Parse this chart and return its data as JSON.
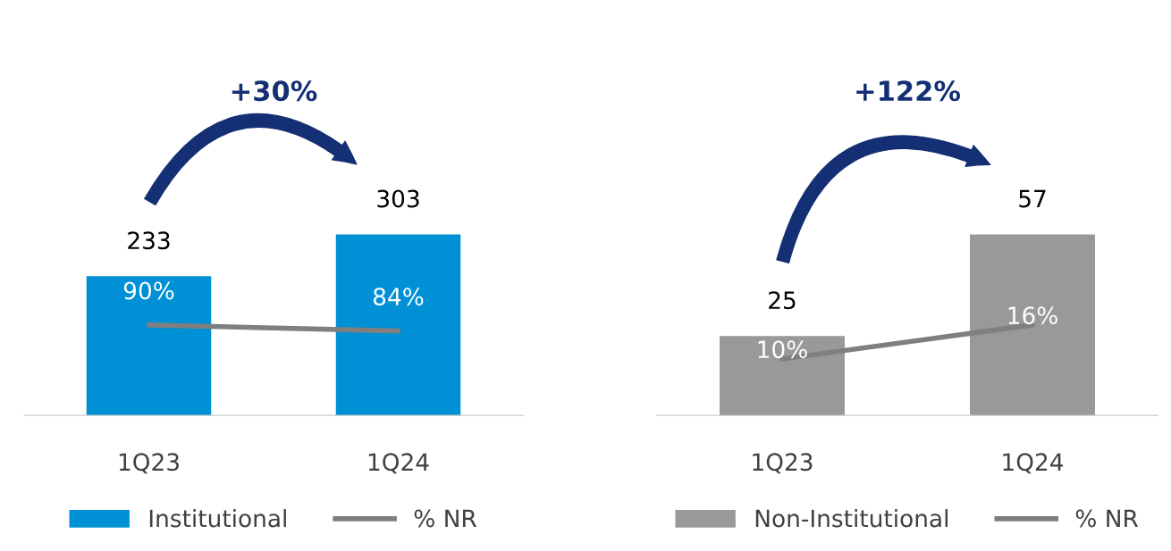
{
  "chart_data": [
    {
      "type": "bar",
      "categories": [
        "1Q23",
        "1Q24"
      ],
      "series": [
        {
          "name": "Institutional",
          "color": "#0090d5",
          "values": [
            233,
            303
          ]
        },
        {
          "name": "% NR",
          "type": "line",
          "axis": "y2",
          "color": "#7f7f7f",
          "values": [
            90,
            84
          ],
          "value_labels": [
            "90%",
            "84%"
          ]
        }
      ],
      "data_labels": true,
      "legend": "bottom",
      "annotations": [
        "+30%"
      ]
    },
    {
      "type": "bar",
      "categories": [
        "1Q23",
        "1Q24"
      ],
      "series": [
        {
          "name": "Non-Institutional",
          "color": "#999999",
          "values": [
            25,
            57
          ]
        },
        {
          "name": "% NR",
          "type": "line",
          "axis": "y2",
          "color": "#7f7f7f",
          "values": [
            10,
            16
          ],
          "value_labels": [
            "10%",
            "16%"
          ]
        }
      ],
      "data_labels": true,
      "legend": "bottom",
      "annotations": [
        "+122%"
      ]
    }
  ]
}
